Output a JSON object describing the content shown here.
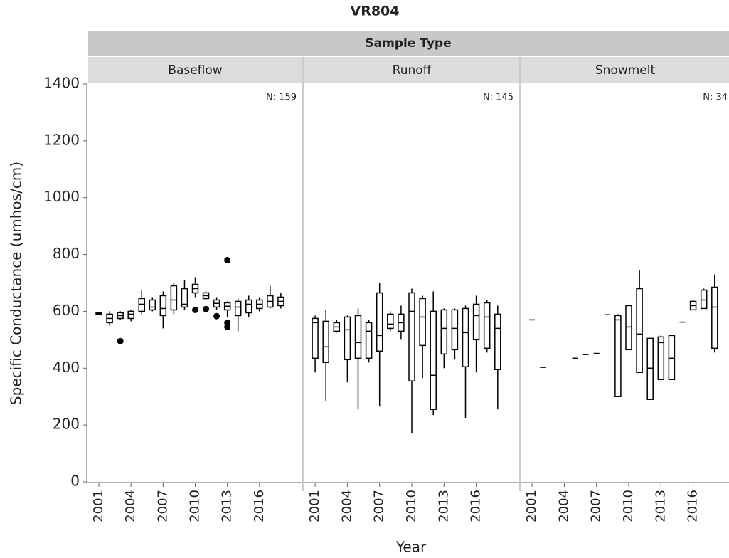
{
  "chart_data": {
    "type": "box",
    "title": "VR804",
    "header": "Sample Type",
    "x_label": "Year",
    "y_label": "Specific Conductance (umhos/cm)",
    "ylim": [
      0,
      1400
    ],
    "yticks": [
      0,
      200,
      400,
      600,
      800,
      1000,
      1200,
      1400
    ],
    "xlim": [
      2000,
      2020
    ],
    "xticks": [
      2001,
      2004,
      2007,
      2010,
      2013,
      2016
    ],
    "facets": [
      {
        "name": "Baseflow",
        "n_label": "N: 159",
        "x": [
          2001,
          2002,
          2003,
          2004,
          2005,
          2006,
          2007,
          2008,
          2009,
          2010,
          2011,
          2012,
          2013,
          2014,
          2015,
          2016,
          2017,
          2018
        ],
        "boxes": [
          {
            "min": 588,
            "q1": 590,
            "median": 592,
            "q3": 594,
            "max": 596
          },
          {
            "min": 550,
            "q1": 560,
            "median": 575,
            "q3": 590,
            "max": 600
          },
          {
            "min": 570,
            "q1": 575,
            "median": 585,
            "q3": 595,
            "max": 600
          },
          {
            "min": 565,
            "q1": 575,
            "median": 590,
            "q3": 600,
            "max": 605
          },
          {
            "min": 590,
            "q1": 600,
            "median": 625,
            "q3": 645,
            "max": 675
          },
          {
            "min": 600,
            "q1": 605,
            "median": 615,
            "q3": 640,
            "max": 650
          },
          {
            "min": 540,
            "q1": 585,
            "median": 610,
            "q3": 655,
            "max": 670
          },
          {
            "min": 590,
            "q1": 605,
            "median": 640,
            "q3": 690,
            "max": 700
          },
          {
            "min": 605,
            "q1": 615,
            "median": 625,
            "q3": 680,
            "max": 710
          },
          {
            "min": 650,
            "q1": 665,
            "median": 680,
            "q3": 695,
            "max": 720
          },
          {
            "min": 640,
            "q1": 645,
            "median": 655,
            "q3": 665,
            "max": 670
          },
          {
            "min": 605,
            "q1": 615,
            "median": 628,
            "q3": 640,
            "max": 650
          },
          {
            "min": 580,
            "q1": 605,
            "median": 618,
            "q3": 630,
            "max": 635
          },
          {
            "min": 530,
            "q1": 585,
            "median": 615,
            "q3": 635,
            "max": 645
          },
          {
            "min": 580,
            "q1": 595,
            "median": 625,
            "q3": 640,
            "max": 655
          },
          {
            "min": 600,
            "q1": 610,
            "median": 625,
            "q3": 640,
            "max": 650
          },
          {
            "min": 610,
            "q1": 615,
            "median": 635,
            "q3": 655,
            "max": 690
          },
          {
            "min": 610,
            "q1": 620,
            "median": 635,
            "q3": 650,
            "max": 665
          }
        ],
        "outliers": [
          {
            "x": 2003,
            "value": 495
          },
          {
            "x": 2010,
            "value": 605
          },
          {
            "x": 2011,
            "value": 608
          },
          {
            "x": 2012,
            "value": 583
          },
          {
            "x": 2013,
            "value": 780
          },
          {
            "x": 2013,
            "value": 560
          },
          {
            "x": 2013,
            "value": 545
          }
        ]
      },
      {
        "name": "Runoff",
        "n_label": "N: 145",
        "x": [
          2001,
          2002,
          2003,
          2004,
          2005,
          2006,
          2007,
          2008,
          2009,
          2010,
          2011,
          2012,
          2013,
          2014,
          2015,
          2016,
          2017,
          2018
        ],
        "boxes": [
          {
            "min": 385,
            "q1": 435,
            "median": 560,
            "q3": 575,
            "max": 585
          },
          {
            "min": 285,
            "q1": 420,
            "median": 475,
            "q3": 565,
            "max": 605
          },
          {
            "min": 525,
            "q1": 530,
            "median": 545,
            "q3": 560,
            "max": 570
          },
          {
            "min": 350,
            "q1": 430,
            "median": 535,
            "q3": 580,
            "max": 585
          },
          {
            "min": 255,
            "q1": 435,
            "median": 490,
            "q3": 585,
            "max": 610
          },
          {
            "min": 420,
            "q1": 435,
            "median": 530,
            "q3": 560,
            "max": 570
          },
          {
            "min": 265,
            "q1": 460,
            "median": 515,
            "q3": 665,
            "max": 700
          },
          {
            "min": 530,
            "q1": 540,
            "median": 555,
            "q3": 590,
            "max": 600
          },
          {
            "min": 500,
            "q1": 530,
            "median": 560,
            "q3": 590,
            "max": 620
          },
          {
            "min": 170,
            "q1": 355,
            "median": 600,
            "q3": 665,
            "max": 680
          },
          {
            "min": 365,
            "q1": 480,
            "median": 580,
            "q3": 645,
            "max": 655
          },
          {
            "min": 235,
            "q1": 255,
            "median": 375,
            "q3": 600,
            "max": 670
          },
          {
            "min": 400,
            "q1": 450,
            "median": 540,
            "q3": 605,
            "max": 610
          },
          {
            "min": 430,
            "q1": 465,
            "median": 540,
            "q3": 605,
            "max": 610
          },
          {
            "min": 225,
            "q1": 405,
            "median": 525,
            "q3": 610,
            "max": 620
          },
          {
            "min": 385,
            "q1": 500,
            "median": 585,
            "q3": 625,
            "max": 655
          },
          {
            "min": 455,
            "q1": 470,
            "median": 580,
            "q3": 630,
            "max": 640
          },
          {
            "min": 255,
            "q1": 395,
            "median": 540,
            "q3": 590,
            "max": 620
          }
        ],
        "outliers": []
      },
      {
        "name": "Snowmelt",
        "n_label": "N: 34",
        "x": [
          2001,
          2002,
          2003,
          2004,
          2005,
          2006,
          2007,
          2008,
          2009,
          2010,
          2011,
          2012,
          2013,
          2014,
          2015,
          2016,
          2017,
          2018
        ],
        "boxes": [
          {
            "min": 570,
            "q1": 570,
            "median": 570,
            "q3": 570,
            "max": 570
          },
          {
            "min": 403,
            "q1": 403,
            "median": 403,
            "q3": 403,
            "max": 403
          },
          null,
          null,
          {
            "min": 435,
            "q1": 435,
            "median": 435,
            "q3": 435,
            "max": 435
          },
          {
            "min": 448,
            "q1": 448,
            "median": 448,
            "q3": 448,
            "max": 448
          },
          {
            "min": 452,
            "q1": 452,
            "median": 452,
            "q3": 452,
            "max": 452
          },
          {
            "min": 588,
            "q1": 588,
            "median": 588,
            "q3": 588,
            "max": 588
          },
          {
            "min": 300,
            "q1": 300,
            "median": 570,
            "q3": 585,
            "max": 590
          },
          {
            "min": 465,
            "q1": 465,
            "median": 545,
            "q3": 620,
            "max": 620
          },
          {
            "min": 385,
            "q1": 385,
            "median": 520,
            "q3": 680,
            "max": 745
          },
          {
            "min": 290,
            "q1": 290,
            "median": 400,
            "q3": 505,
            "max": 505
          },
          {
            "min": 360,
            "q1": 360,
            "median": 490,
            "q3": 510,
            "max": 515
          },
          {
            "min": 360,
            "q1": 360,
            "median": 435,
            "q3": 515,
            "max": 515
          },
          {
            "min": 562,
            "q1": 562,
            "median": 562,
            "q3": 562,
            "max": 562
          },
          {
            "min": 605,
            "q1": 605,
            "median": 620,
            "q3": 635,
            "max": 640
          },
          {
            "min": 610,
            "q1": 610,
            "median": 640,
            "q3": 675,
            "max": 680
          },
          {
            "min": 455,
            "q1": 470,
            "median": 615,
            "q3": 685,
            "max": 730
          }
        ],
        "outliers": []
      }
    ]
  }
}
